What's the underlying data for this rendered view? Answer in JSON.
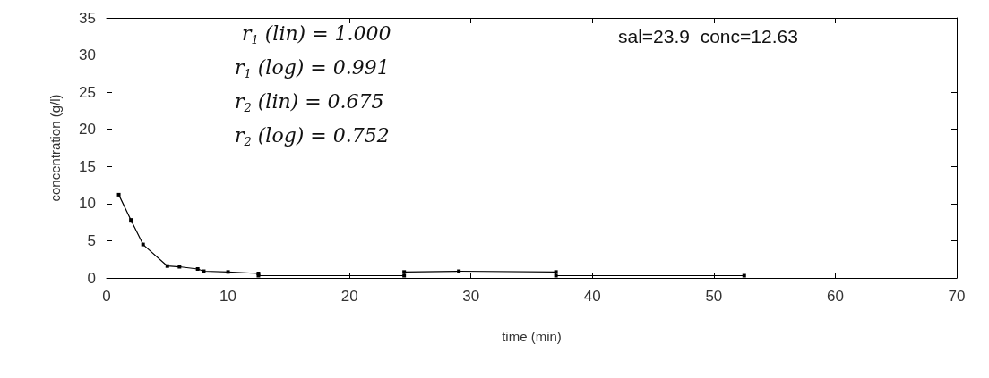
{
  "chart_data": {
    "type": "line",
    "xlabel": "time (min)",
    "ylabel": "concentration (g/l)",
    "x": [
      1,
      2,
      3,
      5,
      6,
      7.5,
      8,
      10,
      12.5,
      12.5,
      24.5,
      24.5,
      29,
      37,
      37,
      52.5
    ],
    "series": [
      {
        "color": "#000000",
        "values": [
          11.2,
          7.8,
          4.5,
          1.6,
          1.5,
          1.2,
          0.9,
          0.8,
          0.6,
          0.3,
          0.3,
          0.8,
          0.9,
          0.8,
          0.3,
          0.3
        ]
      }
    ],
    "xlim": [
      0,
      70
    ],
    "xticks": [
      0,
      10,
      20,
      30,
      40,
      50,
      60,
      70
    ],
    "ylim": [
      0,
      35
    ],
    "yticks": [
      0,
      5,
      10,
      15,
      20,
      25,
      30,
      35
    ],
    "grid": false,
    "marker": "square",
    "line_style": "solid",
    "annotations": [
      "r$_{1}$ (lin) = 1.000",
      "r$_{1}$ (log) = 0.991",
      "r$_{2}$ (lin) = 0.675",
      "r$_{2}$ (log) = 0.752",
      "sal=23.9  conc=12.63"
    ]
  }
}
